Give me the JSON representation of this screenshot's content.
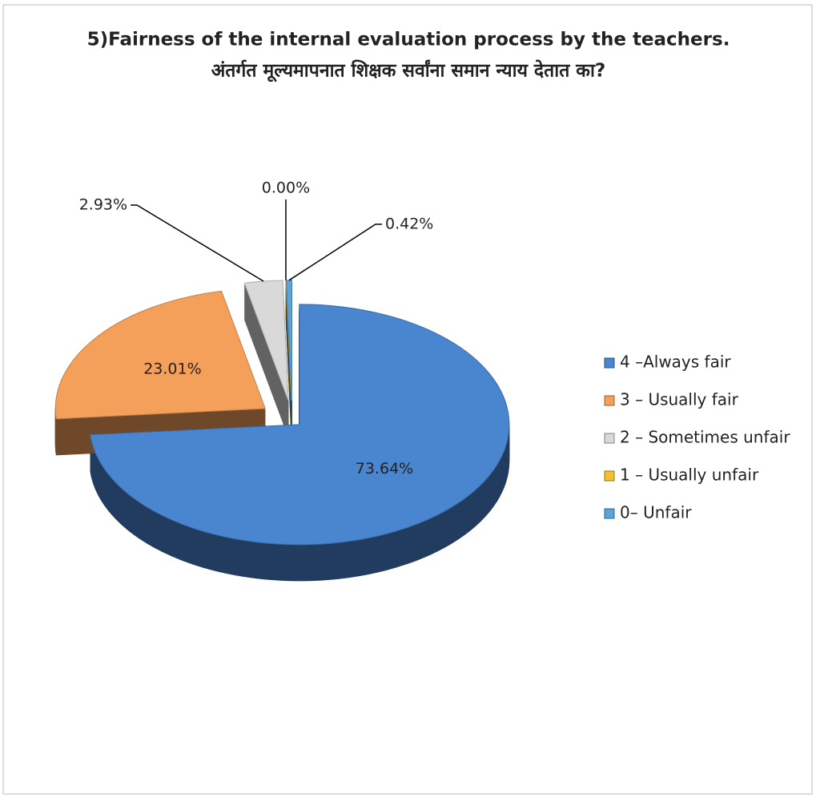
{
  "chart_data": {
    "type": "pie",
    "title": "5)Fairness of the internal evaluation process by the teachers.",
    "subtitle": "अंतर्गत मूल्यमापनात शिक्षक सर्वांना समान न्याय देतात का?",
    "categories": [
      "4 –Always fair",
      "3 – Usually fair",
      "2 – Sometimes unfair",
      "1 – Usually unfair",
      "0– Unfair"
    ],
    "values": [
      73.64,
      23.01,
      2.93,
      0.0,
      0.42
    ],
    "value_labels": [
      "73.64%",
      "23.01%",
      "2.93%",
      "0.00%",
      "0.42%"
    ],
    "colors": [
      "#4a86d0",
      "#f4a05a",
      "#d9d9d9",
      "#f2c12e",
      "#5ba3d9"
    ],
    "legend": "right"
  }
}
